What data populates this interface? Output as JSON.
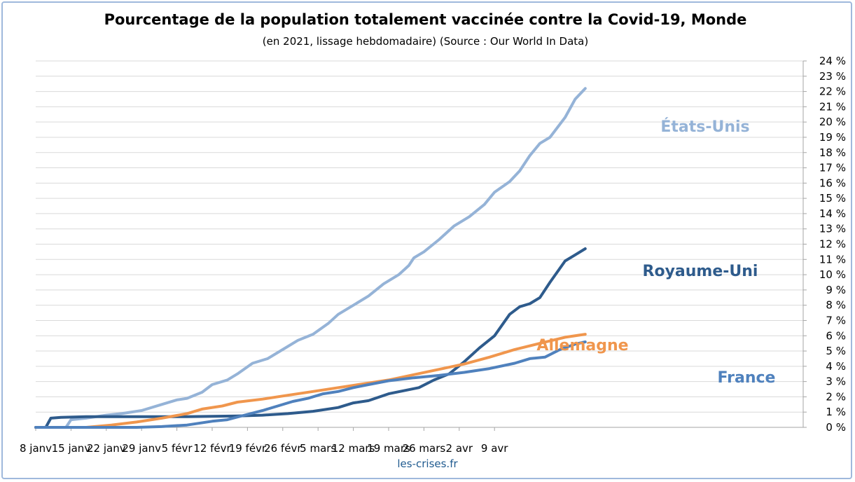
{
  "chart_data": {
    "type": "line",
    "title": "Pourcentage de la population totalement vaccinée contre la Covid-19, Monde",
    "subtitle": "(en 2021, lissage hebdomadaire) (Source : Our World In Data)",
    "xlabel": "",
    "ylabel": "",
    "x_ticks": [
      "8 janv",
      "15 janv",
      "22 janv",
      "29 janv",
      "5 févr",
      "12 févr",
      "19 févr",
      "26 févr",
      "5 mars",
      "12 mars",
      "19 mars",
      "26 mars",
      "2 avr",
      "9 avr"
    ],
    "y_ticks": [
      "0 %",
      "1 %",
      "2 %",
      "3 %",
      "4 %",
      "5 %",
      "6 %",
      "7 %",
      "8 %",
      "9 %",
      "10 %",
      "11 %",
      "12 %",
      "13 %",
      "14 %",
      "15 %",
      "16 %",
      "17 %",
      "18 %",
      "19 %",
      "20 %",
      "21 %",
      "22 %",
      "23 %",
      "24 %"
    ],
    "x_range_days": [
      0,
      94
    ],
    "ylim": [
      0,
      24
    ],
    "grid": true,
    "y_axis_side": "right",
    "series": [
      {
        "name": "États-Unis",
        "color": "#95b3d7",
        "points": [
          [
            0,
            0
          ],
          [
            6,
            0
          ],
          [
            7,
            0.5
          ],
          [
            10,
            0.6
          ],
          [
            14,
            0.8
          ],
          [
            17,
            0.9
          ],
          [
            21,
            1.1
          ],
          [
            25,
            1.5
          ],
          [
            28,
            1.8
          ],
          [
            30,
            1.9
          ],
          [
            33,
            2.3
          ],
          [
            35,
            2.8
          ],
          [
            38,
            3.1
          ],
          [
            40,
            3.5
          ],
          [
            43,
            4.2
          ],
          [
            46,
            4.5
          ],
          [
            49,
            5.1
          ],
          [
            52,
            5.7
          ],
          [
            55,
            6.1
          ],
          [
            58,
            6.8
          ],
          [
            60,
            7.4
          ],
          [
            63,
            8.0
          ],
          [
            66,
            8.6
          ],
          [
            69,
            9.4
          ],
          [
            72,
            10.0
          ],
          [
            74,
            10.6
          ],
          [
            75,
            11.1
          ],
          [
            77,
            11.5
          ],
          [
            80,
            12.3
          ],
          [
            83,
            13.2
          ],
          [
            86,
            13.8
          ],
          [
            89,
            14.6
          ],
          [
            91,
            15.4
          ],
          [
            94,
            16.1
          ],
          [
            96,
            16.8
          ],
          [
            98,
            17.8
          ],
          [
            100,
            18.6
          ],
          [
            102,
            19.0
          ],
          [
            105,
            20.3
          ],
          [
            107,
            21.5
          ],
          [
            109,
            22.2
          ]
        ]
      },
      {
        "name": "Royaume-Uni",
        "color": "#2e5b8c",
        "points": [
          [
            0,
            0
          ],
          [
            2,
            0
          ],
          [
            3,
            0.6
          ],
          [
            5,
            0.65
          ],
          [
            10,
            0.7
          ],
          [
            20,
            0.7
          ],
          [
            30,
            0.7
          ],
          [
            40,
            0.75
          ],
          [
            45,
            0.8
          ],
          [
            50,
            0.9
          ],
          [
            55,
            1.05
          ],
          [
            60,
            1.3
          ],
          [
            63,
            1.6
          ],
          [
            66,
            1.75
          ],
          [
            70,
            2.2
          ],
          [
            73,
            2.4
          ],
          [
            76,
            2.6
          ],
          [
            79,
            3.1
          ],
          [
            82,
            3.5
          ],
          [
            85,
            4.3
          ],
          [
            88,
            5.2
          ],
          [
            91,
            6.0
          ],
          [
            94,
            7.4
          ],
          [
            96,
            7.9
          ],
          [
            98,
            8.1
          ],
          [
            100,
            8.5
          ],
          [
            102,
            9.5
          ],
          [
            105,
            10.9
          ],
          [
            107,
            11.3
          ],
          [
            109,
            11.7
          ]
        ]
      },
      {
        "name": "Allemagne",
        "color": "#f0964d",
        "points": [
          [
            0,
            0
          ],
          [
            10,
            0
          ],
          [
            15,
            0.15
          ],
          [
            20,
            0.35
          ],
          [
            25,
            0.6
          ],
          [
            30,
            0.9
          ],
          [
            33,
            1.2
          ],
          [
            37,
            1.4
          ],
          [
            40,
            1.65
          ],
          [
            45,
            1.85
          ],
          [
            50,
            2.1
          ],
          [
            55,
            2.35
          ],
          [
            60,
            2.6
          ],
          [
            65,
            2.85
          ],
          [
            70,
            3.1
          ],
          [
            75,
            3.45
          ],
          [
            80,
            3.8
          ],
          [
            85,
            4.15
          ],
          [
            90,
            4.6
          ],
          [
            95,
            5.1
          ],
          [
            100,
            5.5
          ],
          [
            105,
            5.9
          ],
          [
            109,
            6.1
          ]
        ]
      },
      {
        "name": "France",
        "color": "#4f81bd",
        "points": [
          [
            0,
            0
          ],
          [
            20,
            0
          ],
          [
            25,
            0.05
          ],
          [
            30,
            0.15
          ],
          [
            35,
            0.4
          ],
          [
            38,
            0.5
          ],
          [
            42,
            0.85
          ],
          [
            45,
            1.1
          ],
          [
            48,
            1.4
          ],
          [
            51,
            1.7
          ],
          [
            54,
            1.9
          ],
          [
            57,
            2.2
          ],
          [
            60,
            2.35
          ],
          [
            63,
            2.6
          ],
          [
            66,
            2.8
          ],
          [
            70,
            3.05
          ],
          [
            75,
            3.25
          ],
          [
            80,
            3.4
          ],
          [
            85,
            3.6
          ],
          [
            90,
            3.85
          ],
          [
            95,
            4.2
          ],
          [
            98,
            4.5
          ],
          [
            101,
            4.6
          ],
          [
            104,
            5.1
          ],
          [
            107,
            5.45
          ],
          [
            109,
            5.6
          ]
        ]
      }
    ],
    "labels": {
      "etats_unis": "États-Unis",
      "royaume_uni": "Royaume-Uni",
      "allemagne": "Allemagne",
      "france": "France"
    },
    "source_text": "les-crises.fr"
  }
}
